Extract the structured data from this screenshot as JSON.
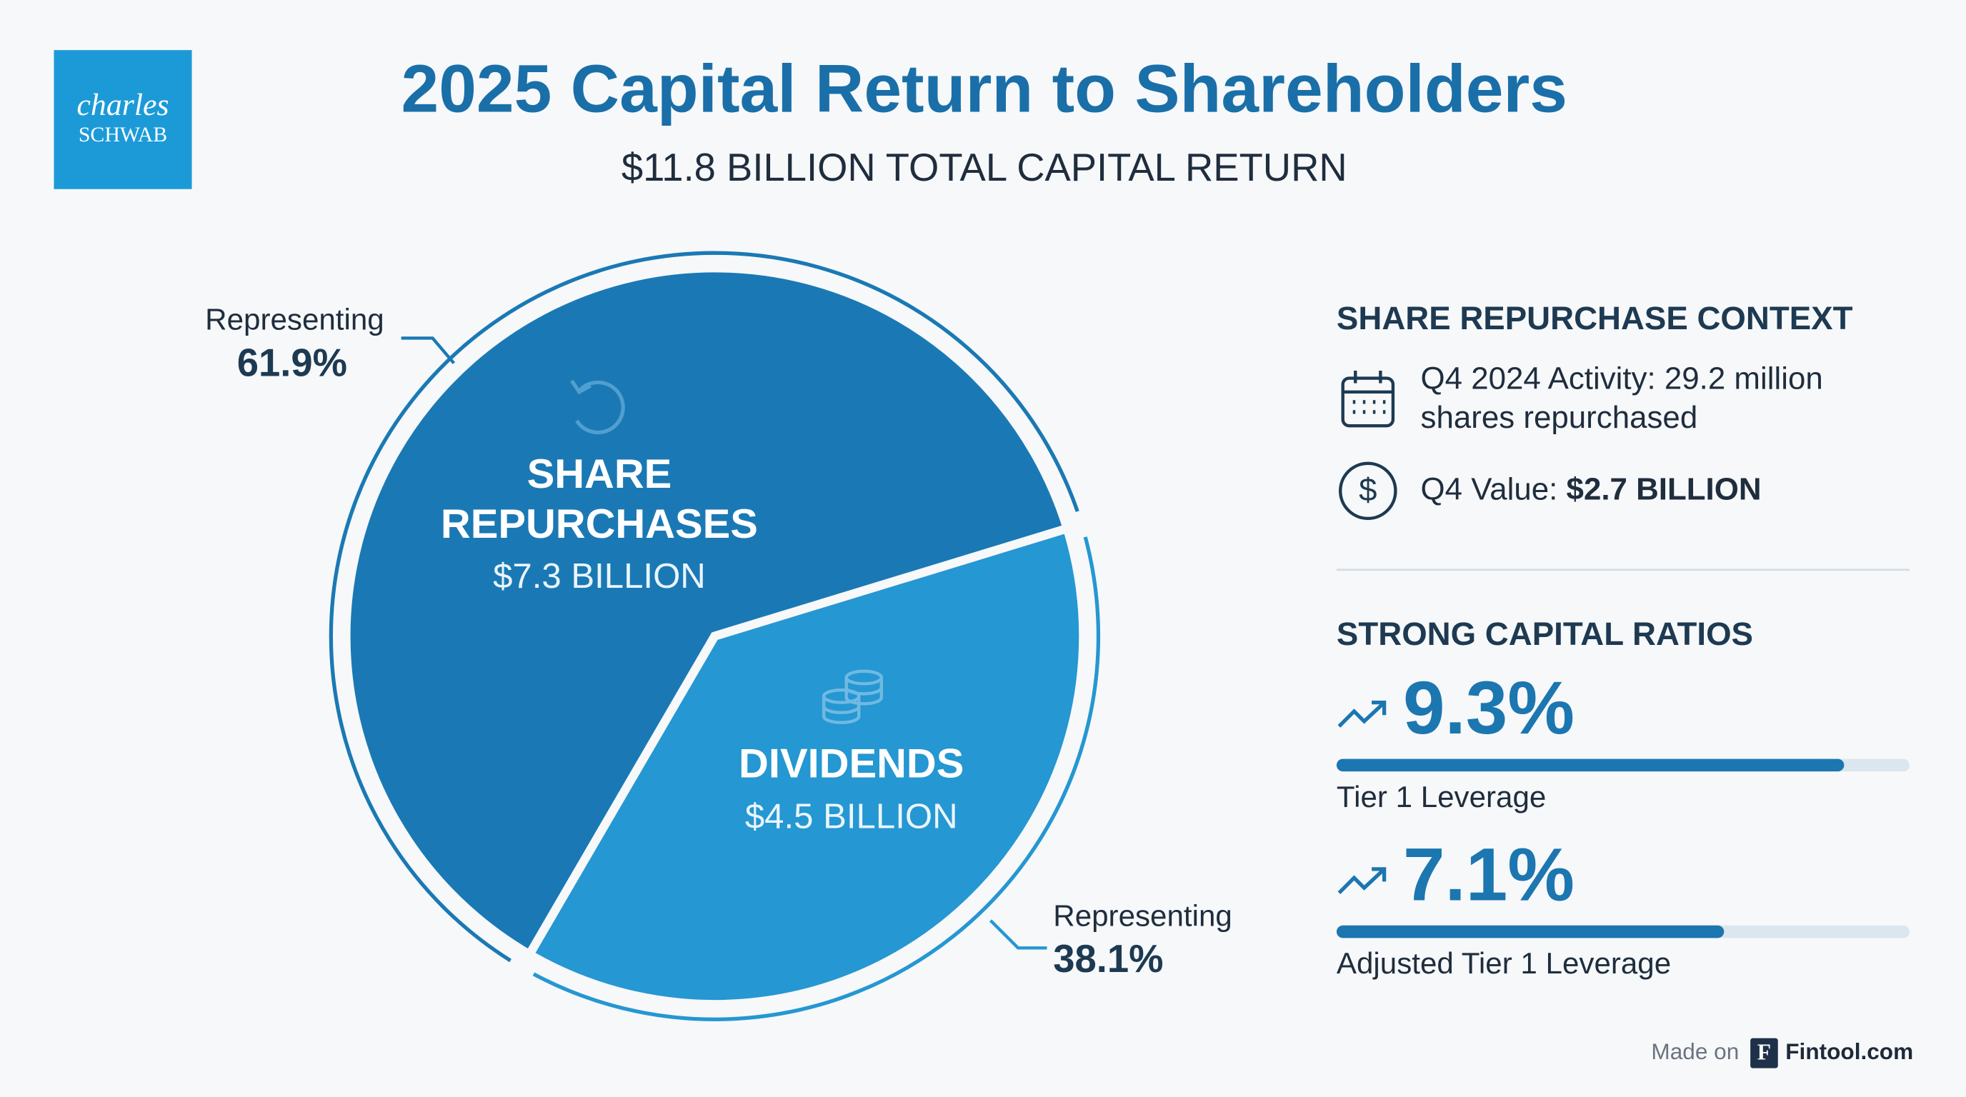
{
  "logo": {
    "line1": "charles",
    "line2": "SCHWAB"
  },
  "chart_data": {
    "type": "pie",
    "title": "2025 Capital Return to Shareholders",
    "subtitle": "$11.8 BILLION TOTAL CAPITAL RETURN",
    "categories": [
      "SHARE REPURCHASES",
      "DIVIDENDS"
    ],
    "amount_labels": [
      "$7.3 BILLION",
      "$4.5 BILLION"
    ],
    "values": [
      61.9,
      38.1
    ],
    "value_labels": [
      "61.9%",
      "38.1%"
    ],
    "share_caption": "Representing",
    "colors": [
      "#1a79b4",
      "#2597d2"
    ]
  },
  "context": {
    "heading": "SHARE REPURCHASE CONTEXT",
    "activity_lines": [
      "Q4 2024 Activity: 29.2 million",
      "shares repurchased"
    ],
    "value_label": "Q4 Value: ",
    "value_text": "$2.7 BILLION"
  },
  "ratios": {
    "heading": "STRONG CAPITAL RATIOS",
    "xlim": [
      0,
      10.5
    ],
    "color": "#1c76b0",
    "items": [
      {
        "name": "Tier 1 Leverage",
        "value": 9.3,
        "value_label": "9.3%"
      },
      {
        "name": "Adjusted Tier 1 Leverage",
        "value": 7.1,
        "value_label": "7.1%"
      }
    ]
  },
  "footer": {
    "made_on": "Made on",
    "brand": "Fintool.com"
  }
}
